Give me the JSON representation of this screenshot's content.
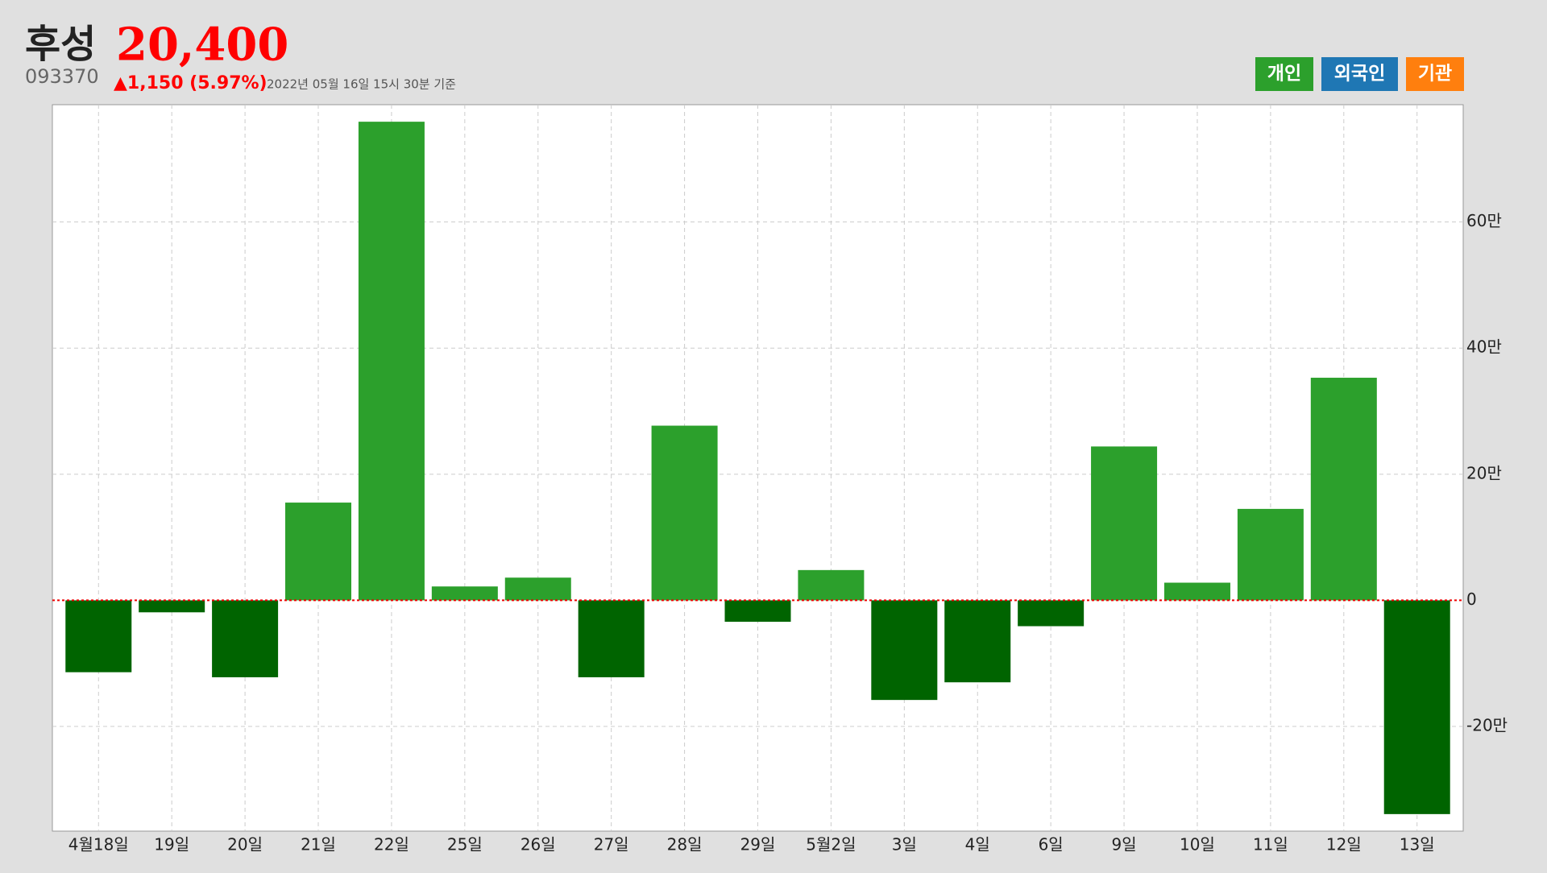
{
  "header": {
    "name": "후성",
    "price": "20,400",
    "code": "093370",
    "change": "▲1,150 (5.97%)",
    "timestamp": "2022년 05월 16일 15시 30분 기준"
  },
  "chart_data": {
    "type": "bar",
    "categories": [
      "4월18일",
      "19일",
      "20일",
      "21일",
      "22일",
      "25일",
      "26일",
      "27일",
      "28일",
      "29일",
      "5월2일",
      "3일",
      "4일",
      "6일",
      "9일",
      "10일",
      "11일",
      "12일",
      "13일"
    ],
    "values": [
      -114000,
      -19000,
      -122000,
      155000,
      759000,
      22000,
      36000,
      -122000,
      277000,
      -34000,
      48000,
      -158000,
      -130000,
      -41000,
      244000,
      28000,
      145000,
      353000,
      -339000
    ],
    "color": "#2ca02c",
    "negative_color": "#006400",
    "ylim": [
      -366000,
      786000
    ],
    "yticks": [
      {
        "value": -200000,
        "label": "-20만"
      },
      0,
      {
        "value": 200000,
        "label": "20만"
      },
      {
        "value": 400000,
        "label": "40만"
      },
      {
        "value": 600000,
        "label": "60만"
      }
    ],
    "grid": true,
    "legend": [
      {
        "name": "개인",
        "color": "#2ca02c"
      },
      {
        "name": "외국인",
        "color": "#1f77b4"
      },
      {
        "name": "기관",
        "color": "#ff7f0e"
      }
    ]
  }
}
